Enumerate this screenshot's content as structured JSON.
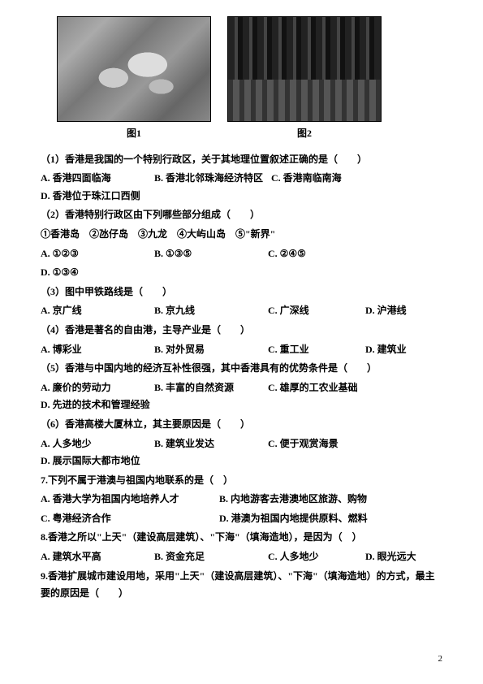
{
  "figures": {
    "caption1": "图1",
    "caption2": "图2"
  },
  "q1": {
    "stem": "（1）香港是我国的一个特别行政区，关于其地理位置叙述正确的是（　　）",
    "a": "A. 香港四面临海",
    "b": "B. 香港北邻珠海经济特区",
    "c": "C. 香港南临南海",
    "d": "D. 香港位于珠江口西侧"
  },
  "q2": {
    "stem": "（2）香港特别行政区由下列哪些部分组成（　　）",
    "circled": "①香港岛　②氹仔岛　③九龙　④大屿山岛　⑤\"新界\"",
    "a": "A. ①②③",
    "b": "B. ①③⑤",
    "c": "C. ②④⑤",
    "d": "D. ①③④"
  },
  "q3": {
    "stem": "（3）图中甲铁路线是（　　）",
    "a": "A. 京广线",
    "b": "B. 京九线",
    "c": "C. 广深线",
    "d": "D. 沪港线"
  },
  "q4": {
    "stem": "（4）香港是著名的自由港，主导产业是（　　）",
    "a": "A. 博彩业",
    "b": "B. 对外贸易",
    "c": "C. 重工业",
    "d": "D. 建筑业"
  },
  "q5": {
    "stem": "（5）香港与中国内地的经济互补性很强，其中香港具有的优势条件是（　　）",
    "a": "A. 廉价的劳动力",
    "b": "B. 丰富的自然资源",
    "c": "C. 雄厚的工农业基础",
    "d": "D. 先进的技术和管理经验"
  },
  "q6": {
    "stem": "（6）香港高楼大厦林立，其主要原因是（　　）",
    "a": "A. 人多地少",
    "b": "B. 建筑业发达",
    "c": "C. 便于观赏海景",
    "d": "D. 展示国际大都市地位"
  },
  "q7": {
    "stem": "7.下列不属于港澳与祖国内地联系的是（　）",
    "a": "A. 香港大学为祖国内地培养人才",
    "b": "B. 内地游客去港澳地区旅游、购物",
    "c": "C. 粤港经济合作",
    "d": "D. 港澳为祖国内地提供原料、燃料"
  },
  "q8": {
    "stem": "8.香港之所以\"上天\"（建设高层建筑）、\"下海\"（填海造地），是因为（　）",
    "a": "A. 建筑水平高",
    "b": "B. 资金充足",
    "c": "C. 人多地少",
    "d": "D. 眼光远大"
  },
  "q9": {
    "stem": "9.香港扩展城市建设用地，采用\"上天\"（建设高层建筑）、\"下海\"（填海造地）的方式，最主要的原因是（　　）"
  },
  "pageNumber": "2"
}
